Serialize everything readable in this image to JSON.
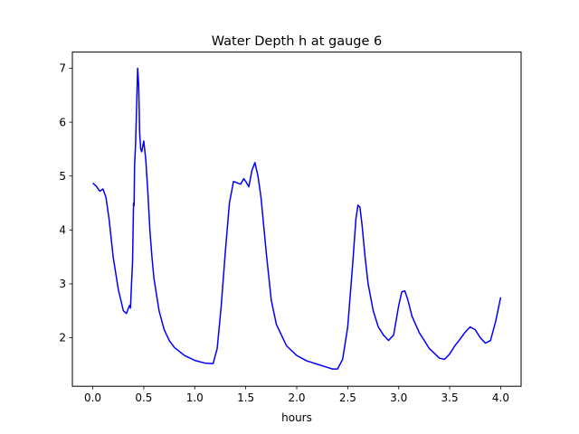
{
  "chart_data": {
    "type": "line",
    "title": "Water Depth h at gauge 6",
    "xlabel": "hours",
    "ylabel": "",
    "xlim": [
      -0.2,
      4.2
    ],
    "ylim": [
      1.1,
      7.3
    ],
    "xticks": [
      0.0,
      0.5,
      1.0,
      1.5,
      2.0,
      2.5,
      3.0,
      3.5,
      4.0
    ],
    "xtick_labels": [
      "0.0",
      "0.5",
      "1.0",
      "1.5",
      "2.0",
      "2.5",
      "3.0",
      "3.5",
      "4.0"
    ],
    "yticks": [
      2,
      3,
      4,
      5,
      6,
      7
    ],
    "ytick_labels": [
      "2",
      "3",
      "4",
      "5",
      "6",
      "7"
    ],
    "grid": false,
    "series": [
      {
        "color": "#0000ff",
        "x": [
          0.0,
          0.03,
          0.07,
          0.1,
          0.13,
          0.16,
          0.2,
          0.25,
          0.3,
          0.33,
          0.35,
          0.36,
          0.37,
          0.38,
          0.39,
          0.4,
          0.405,
          0.41,
          0.42,
          0.43,
          0.44,
          0.45,
          0.46,
          0.47,
          0.48,
          0.5,
          0.52,
          0.54,
          0.56,
          0.58,
          0.6,
          0.65,
          0.7,
          0.75,
          0.8,
          0.9,
          1.0,
          1.1,
          1.18,
          1.22,
          1.26,
          1.3,
          1.34,
          1.38,
          1.42,
          1.45,
          1.48,
          1.5,
          1.53,
          1.56,
          1.59,
          1.62,
          1.65,
          1.7,
          1.75,
          1.8,
          1.9,
          2.0,
          2.1,
          2.2,
          2.3,
          2.35,
          2.4,
          2.45,
          2.5,
          2.55,
          2.58,
          2.6,
          2.62,
          2.64,
          2.67,
          2.7,
          2.75,
          2.8,
          2.85,
          2.9,
          2.95,
          3.0,
          3.03,
          3.06,
          3.09,
          3.13,
          3.2,
          3.3,
          3.4,
          3.45,
          3.5,
          3.55,
          3.6,
          3.65,
          3.7,
          3.75,
          3.8,
          3.85,
          3.9,
          3.95,
          4.0
        ],
        "y": [
          4.87,
          4.82,
          4.72,
          4.76,
          4.6,
          4.2,
          3.5,
          2.9,
          2.5,
          2.45,
          2.55,
          2.6,
          2.55,
          3.0,
          3.4,
          4.5,
          4.45,
          5.2,
          5.6,
          6.3,
          7.0,
          6.7,
          5.8,
          5.5,
          5.45,
          5.65,
          5.3,
          4.7,
          4.0,
          3.5,
          3.1,
          2.5,
          2.15,
          1.95,
          1.82,
          1.67,
          1.58,
          1.53,
          1.52,
          1.8,
          2.6,
          3.6,
          4.5,
          4.9,
          4.87,
          4.85,
          4.95,
          4.9,
          4.8,
          5.1,
          5.25,
          5.0,
          4.6,
          3.6,
          2.7,
          2.25,
          1.85,
          1.67,
          1.57,
          1.51,
          1.45,
          1.42,
          1.42,
          1.6,
          2.2,
          3.4,
          4.2,
          4.46,
          4.42,
          4.1,
          3.5,
          3.0,
          2.5,
          2.2,
          2.05,
          1.95,
          2.05,
          2.6,
          2.85,
          2.87,
          2.7,
          2.4,
          2.1,
          1.8,
          1.62,
          1.6,
          1.7,
          1.85,
          1.97,
          2.1,
          2.2,
          2.15,
          2.0,
          1.9,
          1.95,
          2.3,
          2.75
        ]
      }
    ]
  }
}
